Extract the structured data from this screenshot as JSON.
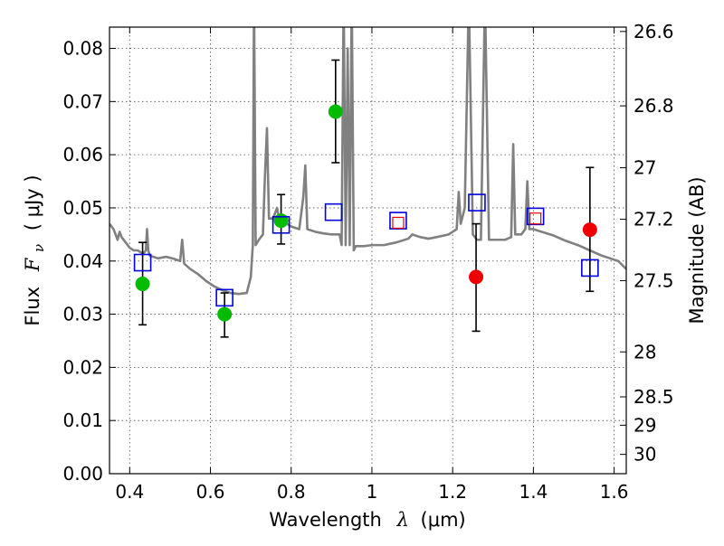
{
  "chart_data": {
    "type": "scatter",
    "xlabel": "Wavelength",
    "xlabel_symbol": "λ",
    "xlabel_unit": "(μm)",
    "ylabel": "Flux",
    "ylabel_symbol": "F",
    "ylabel_subscript": "ν",
    "ylabel_unit": "( μJy )",
    "y2label": "Magnitude (AB)",
    "xlim": [
      0.35,
      1.63
    ],
    "ylim": [
      0.0,
      0.084
    ],
    "grid": true,
    "legend": "none",
    "x_ticks": [
      {
        "value": 0.4,
        "label": "0.4"
      },
      {
        "value": 0.6,
        "label": "0.6"
      },
      {
        "value": 0.8,
        "label": "0.8"
      },
      {
        "value": 1.0,
        "label": "1"
      },
      {
        "value": 1.2,
        "label": "1.2"
      },
      {
        "value": 1.4,
        "label": "1.4"
      },
      {
        "value": 1.6,
        "label": "1.6"
      }
    ],
    "y_ticks": [
      {
        "value": 0.0,
        "label": "0.00"
      },
      {
        "value": 0.01,
        "label": "0.01"
      },
      {
        "value": 0.02,
        "label": "0.02"
      },
      {
        "value": 0.03,
        "label": "0.03"
      },
      {
        "value": 0.04,
        "label": "0.04"
      },
      {
        "value": 0.05,
        "label": "0.05"
      },
      {
        "value": 0.06,
        "label": "0.06"
      },
      {
        "value": 0.07,
        "label": "0.07"
      },
      {
        "value": 0.08,
        "label": "0.08"
      }
    ],
    "y2_ticks": [
      {
        "value": 26.6,
        "label": "26.6"
      },
      {
        "value": 26.8,
        "label": "26.8"
      },
      {
        "value": 27.0,
        "label": "27"
      },
      {
        "value": 27.2,
        "label": "27.2"
      },
      {
        "value": 27.5,
        "label": "27.5"
      },
      {
        "value": 28.0,
        "label": "28"
      },
      {
        "value": 28.5,
        "label": "28.5"
      },
      {
        "value": 29.0,
        "label": "29"
      },
      {
        "value": 30.0,
        "label": "30"
      }
    ],
    "colors": {
      "model": "#808080",
      "green": "#00bb00",
      "red": "#ee0000",
      "blue": "#0000dd",
      "errorbar": "#000000"
    },
    "model_spectrum": [
      [
        0.35,
        0.047
      ],
      [
        0.36,
        0.046
      ],
      [
        0.37,
        0.044
      ],
      [
        0.375,
        0.0455
      ],
      [
        0.38,
        0.0445
      ],
      [
        0.39,
        0.0435
      ],
      [
        0.4,
        0.0425
      ],
      [
        0.41,
        0.042
      ],
      [
        0.42,
        0.042
      ],
      [
        0.43,
        0.0415
      ],
      [
        0.435,
        0.0415
      ],
      [
        0.44,
        0.042
      ],
      [
        0.443,
        0.046
      ],
      [
        0.446,
        0.042
      ],
      [
        0.45,
        0.041
      ],
      [
        0.47,
        0.0405
      ],
      [
        0.49,
        0.0408
      ],
      [
        0.51,
        0.0404
      ],
      [
        0.525,
        0.04
      ],
      [
        0.53,
        0.044
      ],
      [
        0.535,
        0.0395
      ],
      [
        0.55,
        0.0385
      ],
      [
        0.57,
        0.0375
      ],
      [
        0.59,
        0.0362
      ],
      [
        0.61,
        0.0352
      ],
      [
        0.63,
        0.0345
      ],
      [
        0.65,
        0.034
      ],
      [
        0.67,
        0.0338
      ],
      [
        0.69,
        0.034
      ],
      [
        0.7,
        0.037
      ],
      [
        0.705,
        0.043
      ],
      [
        0.708,
        0.09
      ],
      [
        0.712,
        0.043
      ],
      [
        0.72,
        0.044
      ],
      [
        0.73,
        0.045
      ],
      [
        0.735,
        0.056
      ],
      [
        0.74,
        0.065
      ],
      [
        0.745,
        0.048
      ],
      [
        0.755,
        0.048
      ],
      [
        0.765,
        0.05
      ],
      [
        0.77,
        0.048
      ],
      [
        0.78,
        0.047
      ],
      [
        0.79,
        0.047
      ],
      [
        0.8,
        0.0465
      ],
      [
        0.82,
        0.046
      ],
      [
        0.83,
        0.052
      ],
      [
        0.835,
        0.058
      ],
      [
        0.84,
        0.046
      ],
      [
        0.86,
        0.0455
      ],
      [
        0.88,
        0.0452
      ],
      [
        0.9,
        0.045
      ],
      [
        0.91,
        0.045
      ],
      [
        0.92,
        0.045
      ],
      [
        0.925,
        0.043
      ],
      [
        0.93,
        0.09
      ],
      [
        0.935,
        0.043
      ],
      [
        0.94,
        0.08
      ],
      [
        0.945,
        0.043
      ],
      [
        0.95,
        0.09
      ],
      [
        0.955,
        0.042
      ],
      [
        0.96,
        0.0428
      ],
      [
        0.98,
        0.0428
      ],
      [
        1.0,
        0.043
      ],
      [
        1.03,
        0.043
      ],
      [
        1.06,
        0.0435
      ],
      [
        1.09,
        0.0442
      ],
      [
        1.1,
        0.045
      ],
      [
        1.12,
        0.0445
      ],
      [
        1.14,
        0.0442
      ],
      [
        1.16,
        0.0445
      ],
      [
        1.19,
        0.045
      ],
      [
        1.2,
        0.0455
      ],
      [
        1.21,
        0.046
      ],
      [
        1.215,
        0.053
      ],
      [
        1.22,
        0.047
      ],
      [
        1.23,
        0.05
      ],
      [
        1.24,
        0.09
      ],
      [
        1.25,
        0.045
      ],
      [
        1.26,
        0.044
      ],
      [
        1.27,
        0.044
      ],
      [
        1.28,
        0.09
      ],
      [
        1.29,
        0.044
      ],
      [
        1.31,
        0.044
      ],
      [
        1.33,
        0.044
      ],
      [
        1.345,
        0.0445
      ],
      [
        1.35,
        0.062
      ],
      [
        1.355,
        0.045
      ],
      [
        1.37,
        0.045
      ],
      [
        1.38,
        0.046
      ],
      [
        1.385,
        0.055
      ],
      [
        1.39,
        0.046
      ],
      [
        1.4,
        0.046
      ],
      [
        1.42,
        0.0455
      ],
      [
        1.45,
        0.0448
      ],
      [
        1.48,
        0.0438
      ],
      [
        1.51,
        0.043
      ],
      [
        1.54,
        0.042
      ],
      [
        1.57,
        0.041
      ],
      [
        1.59,
        0.0405
      ],
      [
        1.61,
        0.04
      ],
      [
        1.63,
        0.0385
      ]
    ],
    "series": [
      {
        "marker": "circle",
        "color": "green",
        "points": [
          {
            "x": 0.432,
            "y": 0.0357,
            "yerr": [
              0.028,
              0.0435
            ]
          },
          {
            "x": 0.635,
            "y": 0.03,
            "yerr": [
              0.0257,
              0.034
            ]
          },
          {
            "x": 0.775,
            "y": 0.0476,
            "yerr": [
              0.0432,
              0.0525
            ]
          },
          {
            "x": 0.91,
            "y": 0.0681,
            "yerr": [
              0.0585,
              0.0778
            ]
          }
        ]
      },
      {
        "marker": "circle",
        "color": "red",
        "points": [
          {
            "x": 1.258,
            "y": 0.037,
            "yerr": [
              0.0268,
              0.047
            ]
          },
          {
            "x": 1.54,
            "y": 0.0459,
            "yerr": [
              0.0343,
              0.0576
            ]
          }
        ]
      },
      {
        "marker": "square",
        "color": "blue",
        "points": [
          {
            "x": 0.432,
            "y": 0.0397
          },
          {
            "x": 0.635,
            "y": 0.0331
          },
          {
            "x": 0.775,
            "y": 0.0468
          },
          {
            "x": 0.905,
            "y": 0.0492
          },
          {
            "x": 1.065,
            "y": 0.0476
          },
          {
            "x": 1.26,
            "y": 0.051
          },
          {
            "x": 1.405,
            "y": 0.0484
          },
          {
            "x": 1.54,
            "y": 0.0387
          }
        ]
      },
      {
        "marker": "small-square",
        "color": "red",
        "points": [
          {
            "x": 1.065,
            "y": 0.0472
          },
          {
            "x": 1.405,
            "y": 0.048
          }
        ]
      }
    ]
  }
}
